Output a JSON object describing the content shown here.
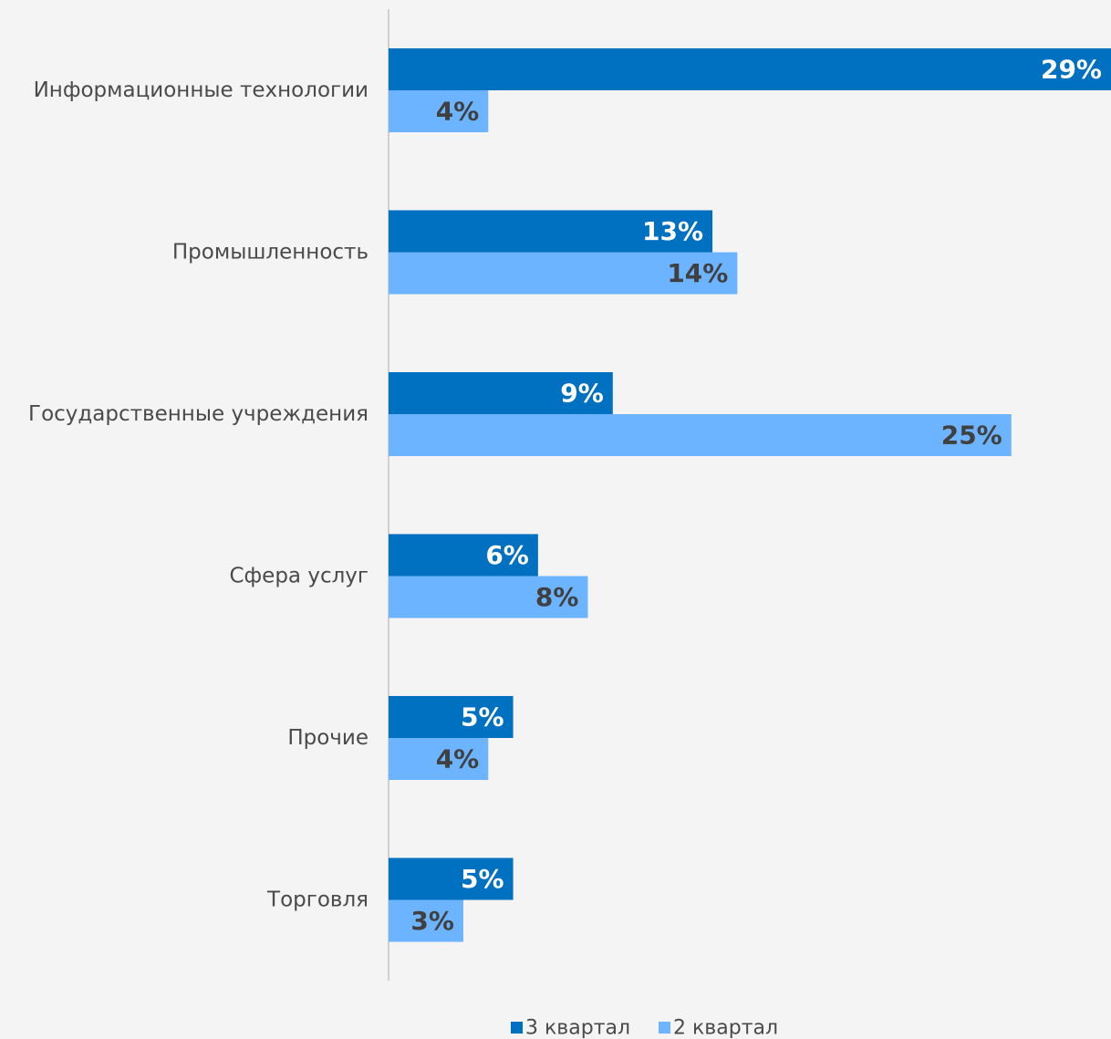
{
  "chart_data": {
    "type": "bar",
    "orientation": "horizontal",
    "categories": [
      "Информационные технологии",
      "Промышленность",
      "Государственные учреждения",
      "Сфера услуг",
      "Прочие",
      "Торговля"
    ],
    "series": [
      {
        "name": "3 квартал",
        "values": [
          29,
          13,
          9,
          6,
          5,
          5
        ],
        "labels": [
          "29%",
          "13%",
          "9%",
          "6%",
          "5%",
          "5%"
        ],
        "color": "#0070c0",
        "label_color": "#ffffff"
      },
      {
        "name": "2 квартал",
        "values": [
          4,
          14,
          25,
          8,
          4,
          3
        ],
        "labels": [
          "4%",
          "14%",
          "25%",
          "8%",
          "4%",
          "3%"
        ],
        "color": "#6cb4ff",
        "label_color": "#404040"
      }
    ],
    "xlim": [
      0,
      29
    ],
    "grid": false,
    "legend_position": "bottom-center",
    "axis_color": "#d0d0d0",
    "background": "#f4f4f4"
  }
}
